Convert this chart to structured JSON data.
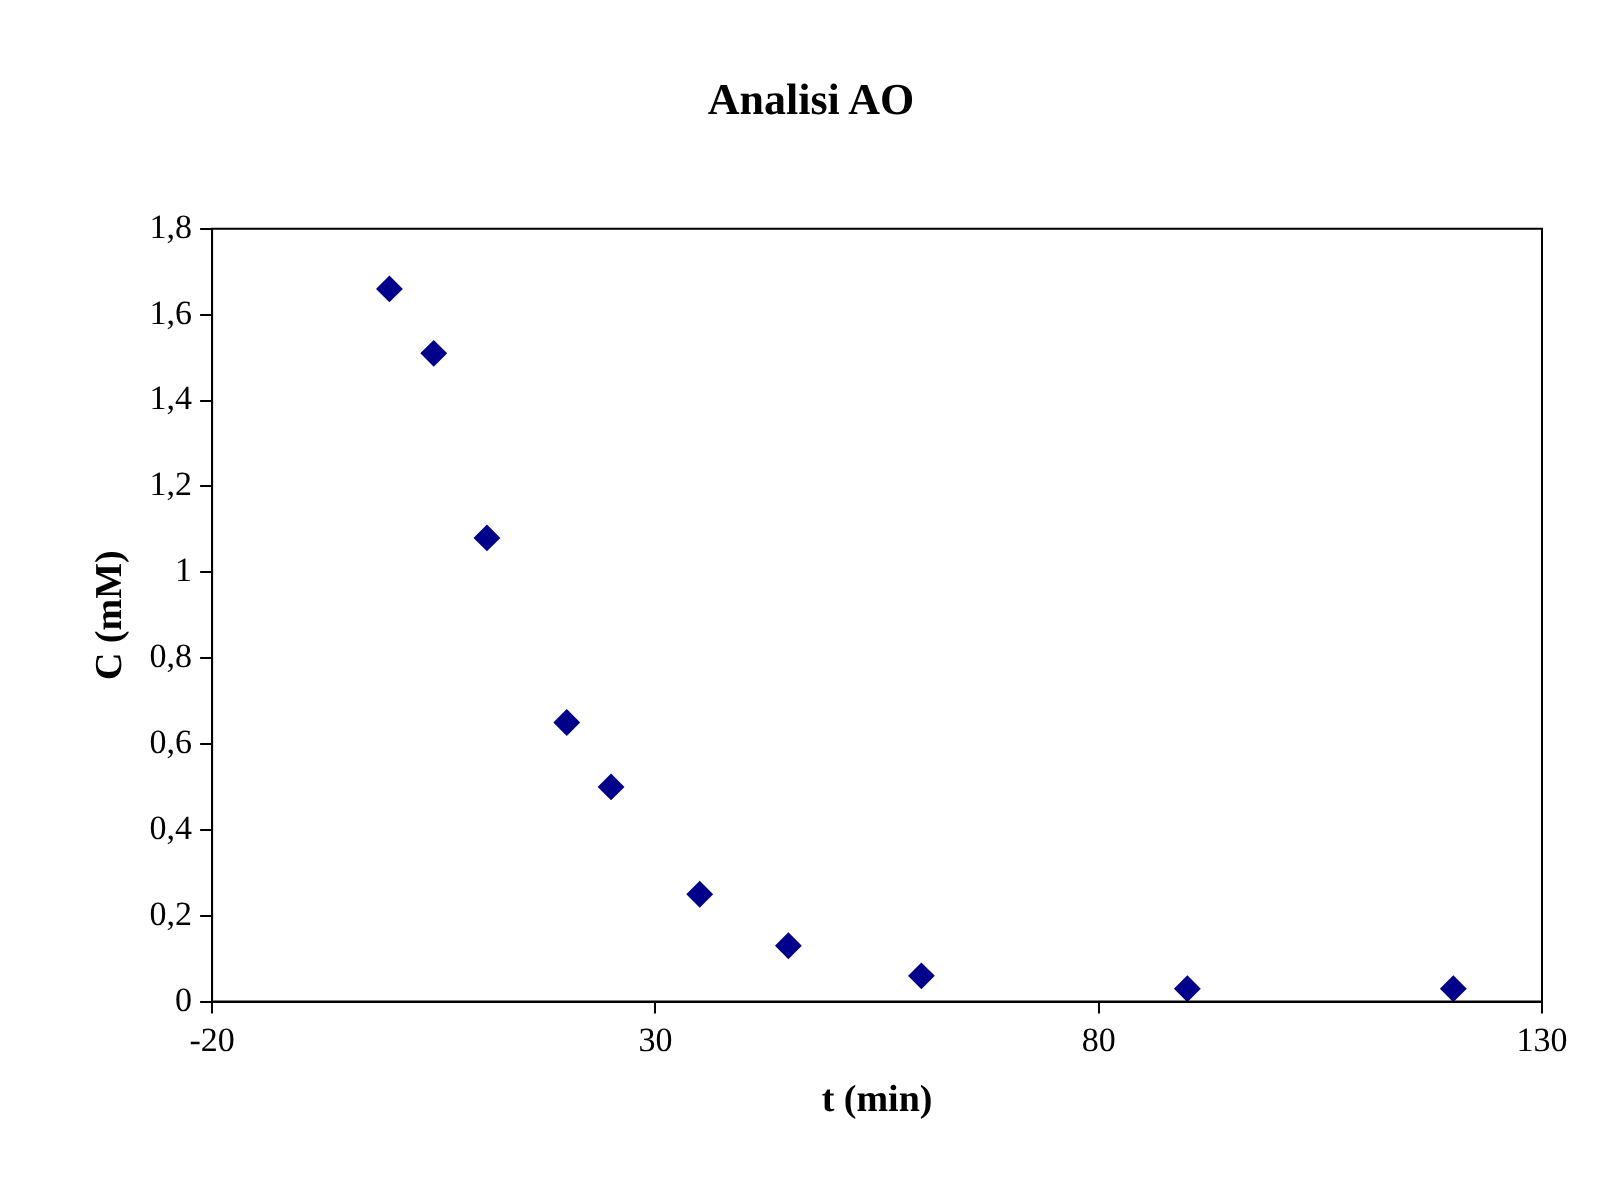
{
  "chart_data": {
    "type": "scatter",
    "title": "Analisi AO",
    "xlabel": "t (min)",
    "ylabel": "C (mM)",
    "x": [
      0,
      5,
      11,
      20,
      25,
      35,
      45,
      60,
      90,
      120
    ],
    "series": [
      {
        "color": "#00008b",
        "values": [
          1.66,
          1.51,
          1.08,
          0.65,
          0.5,
          0.25,
          0.13,
          0.06,
          0.03,
          0.03
        ]
      }
    ],
    "xlim": [
      -20,
      130
    ],
    "xticks": [
      -20,
      30,
      80,
      130
    ],
    "ylim": [
      0,
      1.8
    ],
    "yticks": [
      0,
      {
        "value": 0.2,
        "label": "0,2"
      },
      {
        "value": 0.4,
        "label": "0,4"
      },
      {
        "value": 0.6,
        "label": "0,6"
      },
      {
        "value": 0.8,
        "label": "0,8"
      },
      1,
      {
        "value": 1.2,
        "label": "1,2"
      },
      {
        "value": 1.4,
        "label": "1,4"
      },
      {
        "value": 1.6,
        "label": "1,6"
      },
      {
        "value": 1.8,
        "label": "1,8"
      }
    ],
    "grid": false,
    "legend": false,
    "marker": "diamond"
  }
}
